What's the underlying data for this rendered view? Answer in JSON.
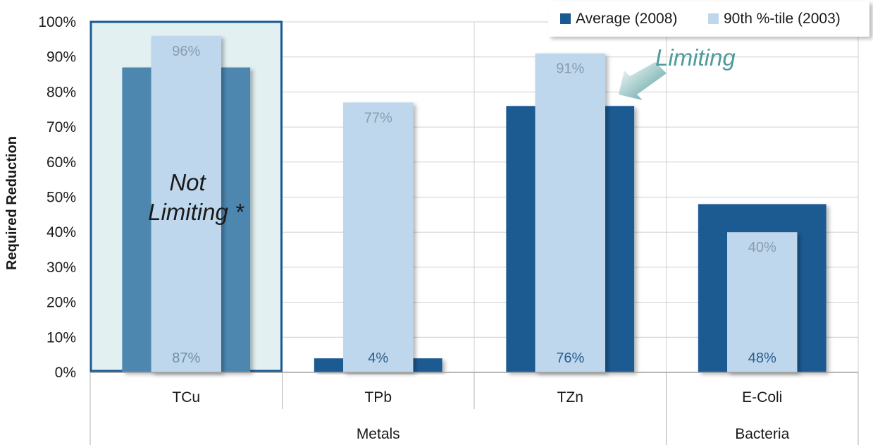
{
  "chart_data": {
    "type": "bar",
    "ylabel": "Required Reduction",
    "ylim": [
      0,
      100
    ],
    "ytick_step": 10,
    "ytick_format": "{v}%",
    "grid": true,
    "legend_position": "top-right",
    "categories": [
      "TCu",
      "TPb",
      "TZn",
      "E-Coli"
    ],
    "groups": [
      {
        "label": "Metals",
        "categories": [
          "TCu",
          "TPb",
          "TZn"
        ]
      },
      {
        "label": "Bacteria",
        "categories": [
          "E-Coli"
        ]
      }
    ],
    "series": [
      {
        "name": "Average (2008)",
        "color": "#1a5a92",
        "values": [
          87,
          4,
          76,
          48
        ],
        "labels": [
          "87%",
          "4%",
          "76%",
          "48%"
        ]
      },
      {
        "name": "90th %-tile (2003)",
        "color": "#bed7ec",
        "values": [
          96,
          77,
          91,
          40
        ],
        "labels": [
          "96%",
          "77%",
          "91%",
          "40%"
        ]
      }
    ],
    "annotations": {
      "not_limiting": [
        "Not",
        "Limiting *"
      ],
      "limiting": "Limiting"
    },
    "colors": {
      "highlight_box_border": "#1a5a92",
      "highlight_box_fill": "#e3f0f2",
      "dimmed_average": "#4d87b0",
      "arrow": "#4f9a9a"
    }
  }
}
